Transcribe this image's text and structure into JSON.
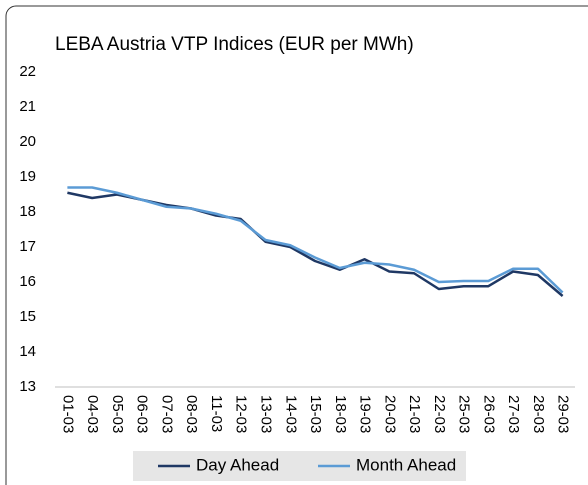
{
  "chart_data": {
    "type": "line",
    "title": "LEBA Austria VTP Indices (EUR per MWh)",
    "categories": [
      "01-03",
      "04-03",
      "05-03",
      "06-03",
      "07-03",
      "08-03",
      "11-03",
      "12-03",
      "13-03",
      "14-03",
      "15-03",
      "18-03",
      "19-03",
      "20-03",
      "21-03",
      "22-03",
      "25-03",
      "26-03",
      "27-03",
      "28-03",
      "29-03"
    ],
    "series": [
      {
        "name": "Day Ahead",
        "color": "#1f3864",
        "values": [
          18.55,
          18.4,
          18.5,
          18.35,
          18.2,
          18.1,
          17.9,
          17.8,
          17.15,
          17.0,
          16.6,
          16.35,
          16.65,
          16.3,
          16.25,
          15.8,
          15.88,
          15.88,
          16.3,
          16.2,
          15.6
        ]
      },
      {
        "name": "Month Ahead",
        "color": "#5b9bd5",
        "values": [
          18.7,
          18.7,
          18.55,
          18.35,
          18.15,
          18.1,
          17.95,
          17.75,
          17.2,
          17.05,
          16.7,
          16.4,
          16.55,
          16.5,
          16.35,
          16.0,
          16.03,
          16.03,
          16.38,
          16.38,
          15.7
        ]
      }
    ],
    "ylim": [
      13,
      22
    ],
    "yticks": [
      13,
      14,
      15,
      16,
      17,
      18,
      19,
      20,
      21,
      22
    ],
    "grid": false,
    "legend": "bottom"
  }
}
